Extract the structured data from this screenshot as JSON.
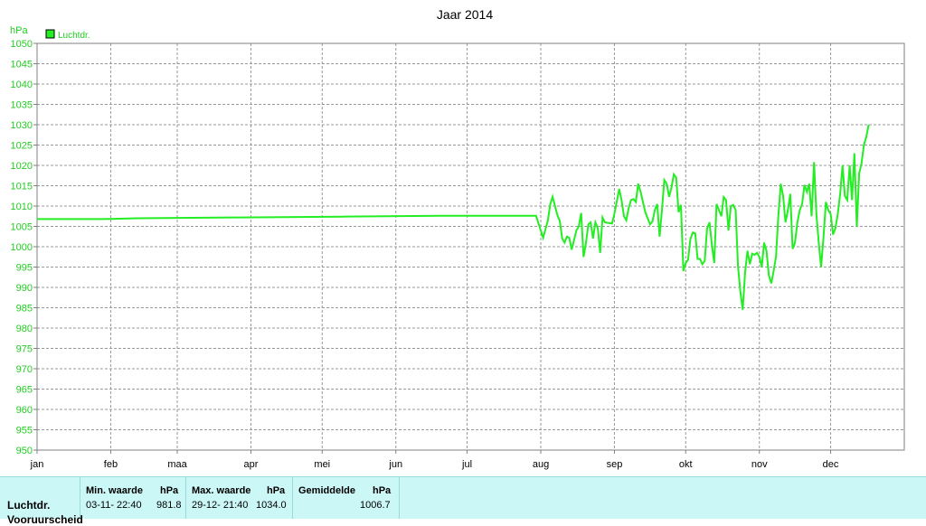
{
  "chart_data": {
    "type": "line",
    "title": "Jaar 2014",
    "ylabel": "hPa",
    "ylim": [
      950,
      1050
    ],
    "yticks": [
      950,
      955,
      960,
      965,
      970,
      975,
      980,
      985,
      990,
      995,
      1000,
      1005,
      1010,
      1015,
      1020,
      1025,
      1030,
      1035,
      1040,
      1045,
      1050
    ],
    "xlim": [
      0,
      365
    ],
    "xticks": [
      {
        "label": "jan",
        "day": 0
      },
      {
        "label": "feb",
        "day": 31
      },
      {
        "label": "maa",
        "day": 59
      },
      {
        "label": "apr",
        "day": 90
      },
      {
        "label": "mei",
        "day": 120
      },
      {
        "label": "jun",
        "day": 151
      },
      {
        "label": "jul",
        "day": 181
      },
      {
        "label": "aug",
        "day": 212
      },
      {
        "label": "sep",
        "day": 243
      },
      {
        "label": "okt",
        "day": 273
      },
      {
        "label": "nov",
        "day": 304
      },
      {
        "label": "dec",
        "day": 334
      }
    ],
    "grid": true,
    "legend_position": "top-left",
    "series": [
      {
        "name": "Luchtdr.",
        "color": "#22ee22",
        "points": [
          [
            0,
            1006.8
          ],
          [
            28,
            1006.8
          ],
          [
            42,
            1007.0
          ],
          [
            85,
            1007.2
          ],
          [
            128,
            1007.4
          ],
          [
            170,
            1007.6
          ],
          [
            210,
            1007.6
          ],
          [
            213,
            1002.2
          ],
          [
            215,
            1006.5
          ],
          [
            216,
            1010.5
          ],
          [
            217,
            1012.3
          ],
          [
            219,
            1007.7
          ],
          [
            220,
            1006.4
          ],
          [
            221,
            1002.0
          ],
          [
            222,
            1001.0
          ],
          [
            223,
            1002.5
          ],
          [
            224,
            1002.2
          ],
          [
            225,
            999.3
          ],
          [
            227,
            1004.0
          ],
          [
            228,
            1005.0
          ],
          [
            229,
            1008.3
          ],
          [
            230,
            997.5
          ],
          [
            231,
            1000.8
          ],
          [
            232,
            1005.5
          ],
          [
            233,
            1006.0
          ],
          [
            234,
            1002.0
          ],
          [
            235,
            1006.0
          ],
          [
            236,
            1004.5
          ],
          [
            237,
            998.5
          ],
          [
            238,
            1007.2
          ],
          [
            239,
            1006.0
          ],
          [
            242,
            1005.7
          ],
          [
            243,
            1008.2
          ],
          [
            245,
            1014.2
          ],
          [
            246,
            1011.5
          ],
          [
            247,
            1007.5
          ],
          [
            248,
            1006.5
          ],
          [
            249,
            1009.5
          ],
          [
            250,
            1011.5
          ],
          [
            251,
            1011.7
          ],
          [
            252,
            1011.0
          ],
          [
            253,
            1015.5
          ],
          [
            254,
            1013.5
          ],
          [
            256,
            1008.5
          ],
          [
            258,
            1005.5
          ],
          [
            259,
            1006.2
          ],
          [
            260,
            1009.0
          ],
          [
            261,
            1010.5
          ],
          [
            262,
            1002.5
          ],
          [
            263,
            1009.0
          ],
          [
            264,
            1016.4
          ],
          [
            265,
            1015.5
          ],
          [
            266,
            1012.3
          ],
          [
            267,
            1014.5
          ],
          [
            268,
            1017.8
          ],
          [
            269,
            1017.0
          ],
          [
            270,
            1008.5
          ],
          [
            271,
            1010.3
          ],
          [
            272,
            994.0
          ],
          [
            273,
            996.0
          ],
          [
            274,
            996.8
          ],
          [
            275,
            1002.0
          ],
          [
            276,
            1003.5
          ],
          [
            277,
            1003.3
          ],
          [
            278,
            997.0
          ],
          [
            279,
            997.0
          ],
          [
            280,
            995.7
          ],
          [
            281,
            996.5
          ],
          [
            282,
            1004.5
          ],
          [
            283,
            1006.0
          ],
          [
            284,
            1000.5
          ],
          [
            285,
            996.0
          ],
          [
            286,
            1010.5
          ],
          [
            287,
            1009.0
          ],
          [
            288,
            1007.5
          ],
          [
            289,
            1012.2
          ],
          [
            290,
            1011.5
          ],
          [
            291,
            1004.0
          ],
          [
            292,
            1010.0
          ],
          [
            293,
            1010.3
          ],
          [
            294,
            1009.0
          ],
          [
            295,
            995.2
          ],
          [
            296,
            989.0
          ],
          [
            297,
            984.5
          ],
          [
            298,
            993.8
          ],
          [
            299,
            999.0
          ],
          [
            300,
            995.7
          ],
          [
            301,
            998.3
          ],
          [
            302,
            998.0
          ],
          [
            303,
            998.5
          ],
          [
            304,
            997.5
          ],
          [
            305,
            995.0
          ],
          [
            306,
            1001.0
          ],
          [
            307,
            999.0
          ],
          [
            308,
            993.0
          ],
          [
            309,
            991.0
          ],
          [
            310,
            994.0
          ],
          [
            311,
            997.5
          ],
          [
            312,
            1007.5
          ],
          [
            313,
            1015.5
          ],
          [
            314,
            1012.5
          ],
          [
            315,
            1006.0
          ],
          [
            316,
            1009.0
          ],
          [
            317,
            1013.0
          ],
          [
            318,
            999.5
          ],
          [
            319,
            1001.0
          ],
          [
            320,
            1006.0
          ],
          [
            321,
            1009.0
          ],
          [
            322,
            1010.5
          ],
          [
            323,
            1015.2
          ],
          [
            324,
            1013.5
          ],
          [
            325,
            1015.5
          ],
          [
            326,
            1007.5
          ],
          [
            327,
            1020.8
          ],
          [
            328,
            1008.0
          ],
          [
            329,
            1001.0
          ],
          [
            330,
            995.0
          ],
          [
            331,
            1002.5
          ],
          [
            332,
            1011.0
          ],
          [
            333,
            1009.0
          ],
          [
            334,
            1008.0
          ],
          [
            335,
            1003.0
          ],
          [
            336,
            1004.5
          ],
          [
            337,
            1008.0
          ],
          [
            338,
            1013.0
          ],
          [
            339,
            1020.0
          ],
          [
            340,
            1012.5
          ],
          [
            341,
            1011.5
          ],
          [
            342,
            1020.0
          ],
          [
            343,
            1011.5
          ],
          [
            344,
            1023.0
          ],
          [
            345,
            1005.0
          ],
          [
            346,
            1018.0
          ],
          [
            347,
            1020.5
          ],
          [
            348,
            1025.0
          ],
          [
            349,
            1027.0
          ],
          [
            350,
            1030.0
          ]
        ]
      }
    ]
  },
  "stats": {
    "row_label": "Luchtdr.",
    "row_label2": "Vooruurscheid",
    "min_header": "Min. waarde",
    "max_header": "Max. waarde",
    "avg_header": "Gemiddelde",
    "unit": "hPa",
    "min_time": "03-11-  22:40",
    "min_value": "981.8",
    "max_time": "29-12-  21:40",
    "max_value": "1034.0",
    "avg_value": "1006.7"
  }
}
